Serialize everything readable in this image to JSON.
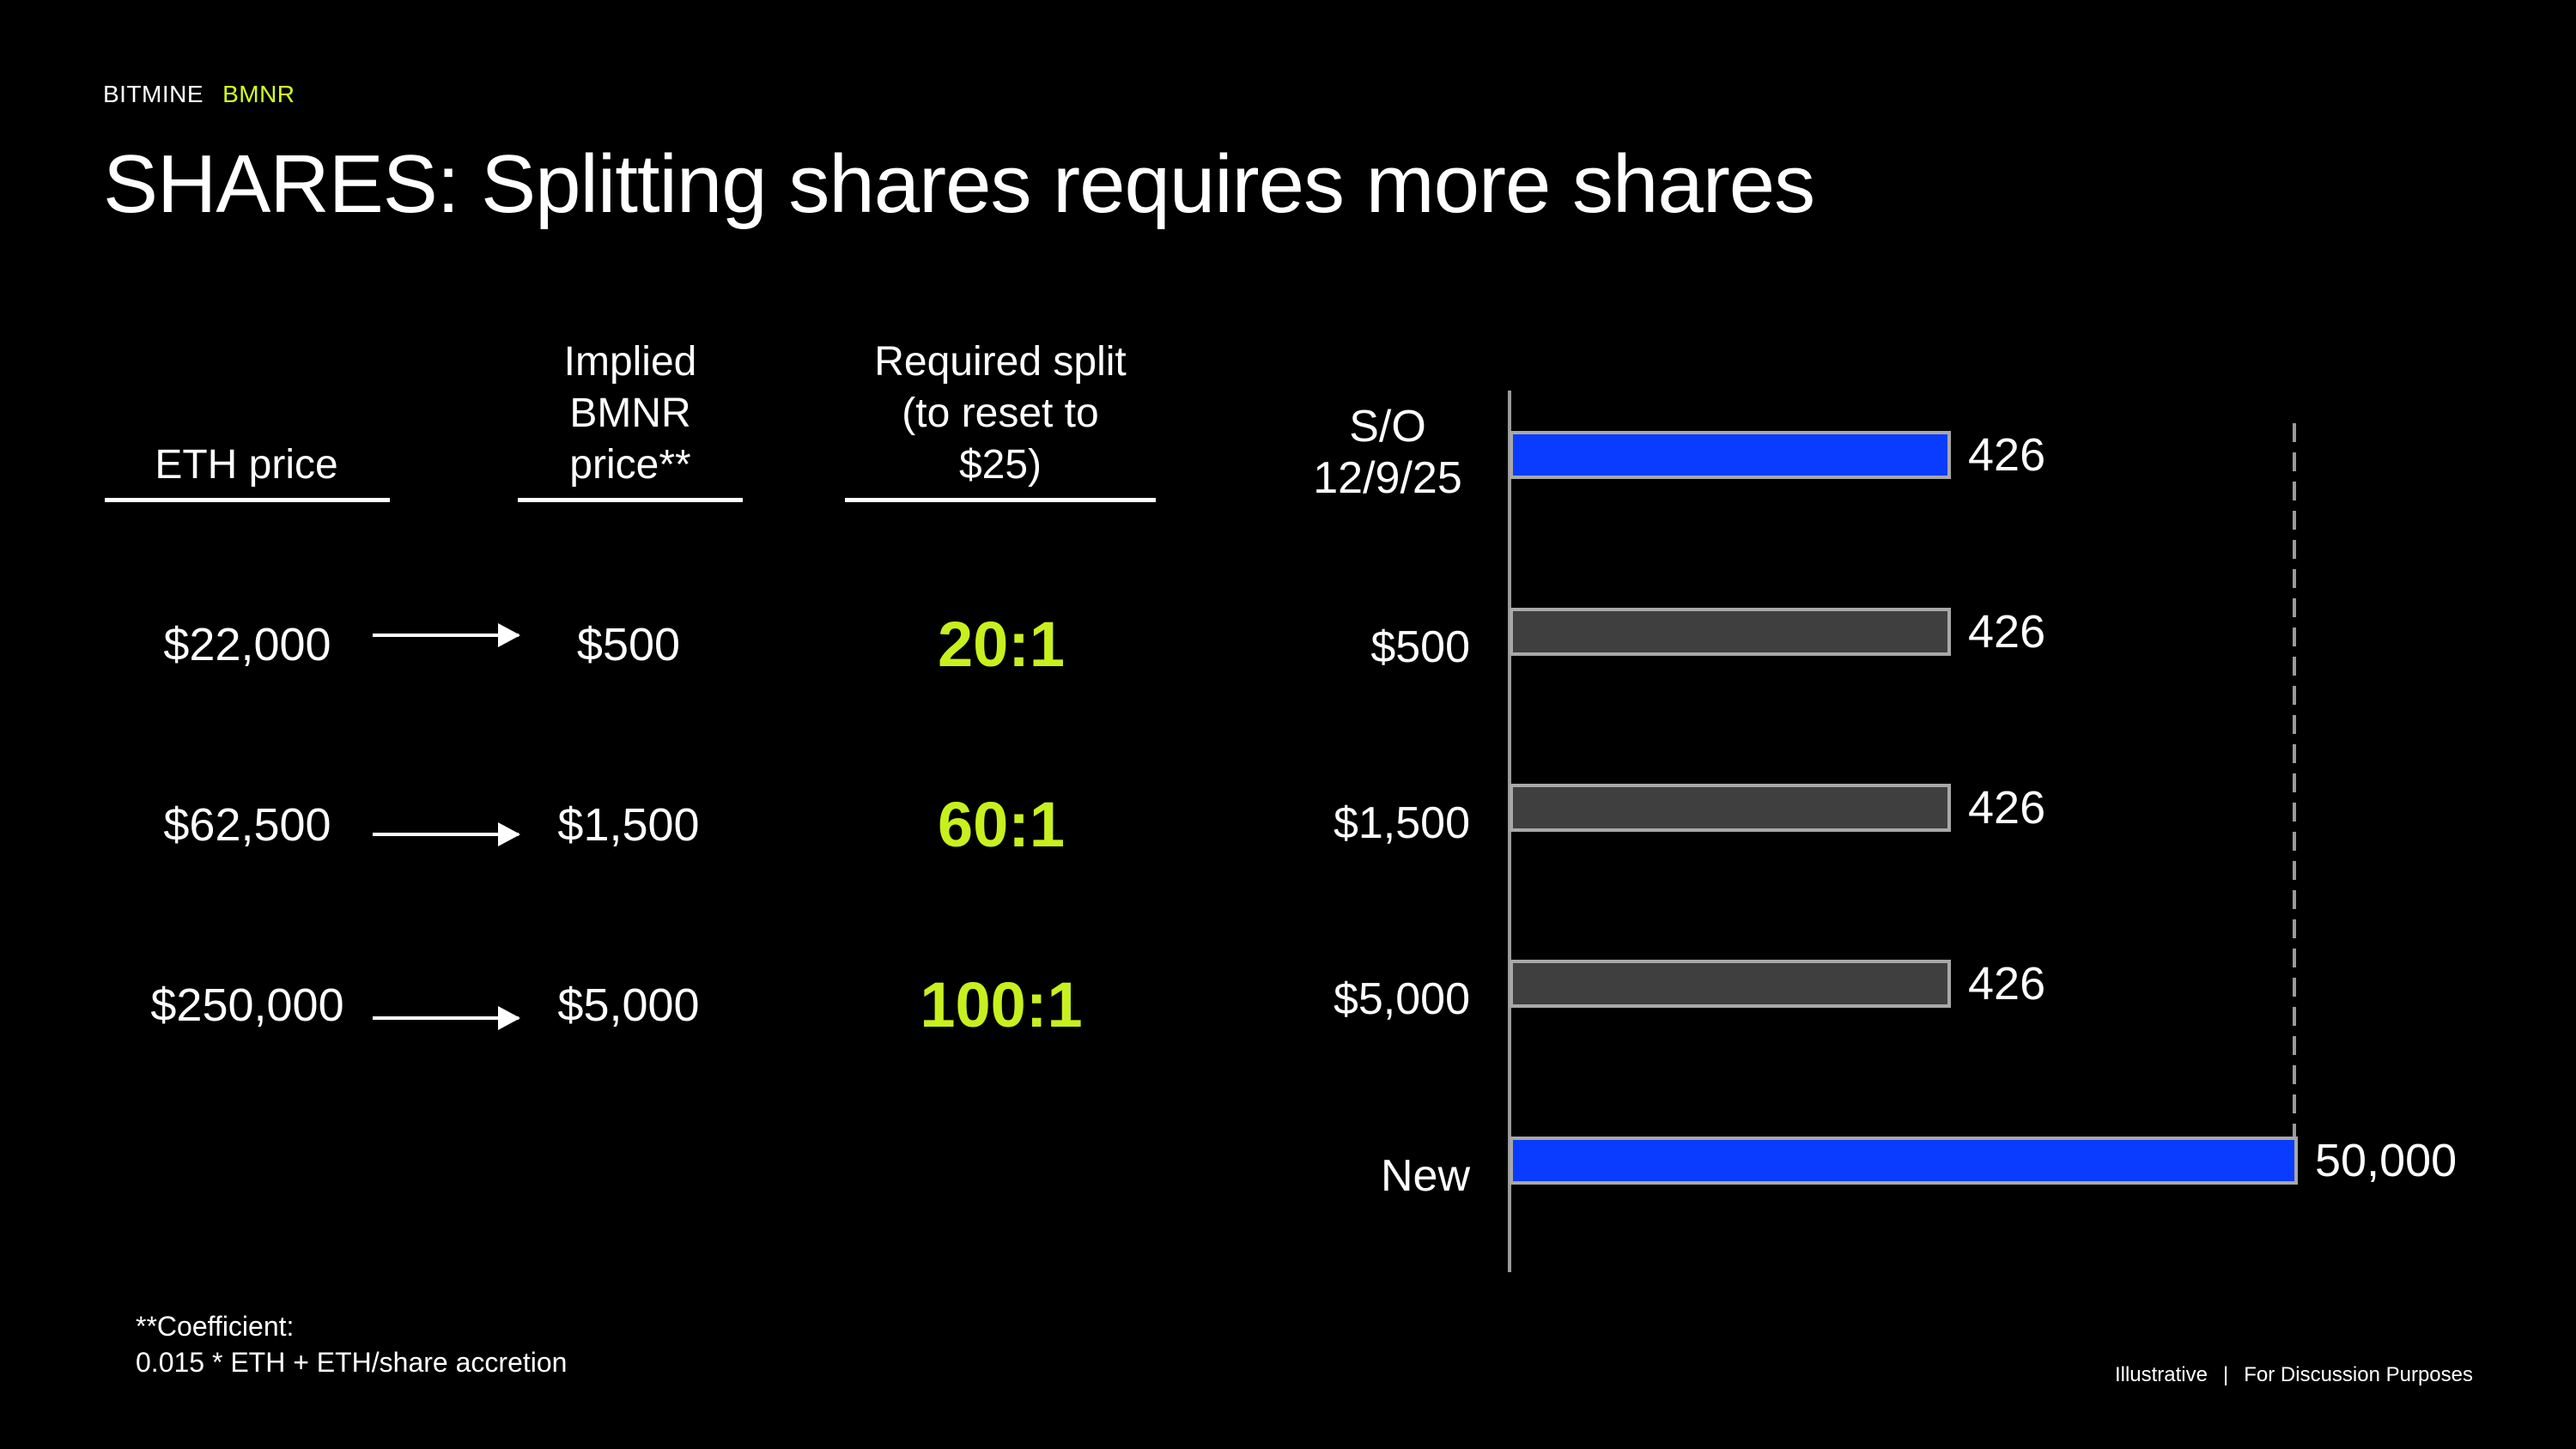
{
  "header": {
    "brand": "BITMINE",
    "ticker": "BMNR"
  },
  "title": "SHARES: Splitting shares requires more shares",
  "table": {
    "headers": {
      "eth_price": "ETH price",
      "implied_bmnr_price": "Implied\nBMNR\nprice**",
      "required_split": "Required split\n(to reset to\n$25)"
    },
    "rows": [
      {
        "eth_price": "$22,000",
        "implied_price": "$500",
        "split": "20:1"
      },
      {
        "eth_price": "$62,500",
        "implied_price": "$1,500",
        "split": "60:1"
      },
      {
        "eth_price": "$250,000",
        "implied_price": "$5,000",
        "split": "100:1"
      }
    ]
  },
  "chart_data": {
    "type": "bar",
    "orientation": "horizontal",
    "categories": [
      "S/O\n12/9/25",
      "$500",
      "$1,500",
      "$5,000",
      "New"
    ],
    "values": [
      426,
      426,
      426,
      426,
      50000
    ],
    "data_labels": [
      "426",
      "426",
      "426",
      "426",
      "50,000"
    ],
    "value_max": 50000,
    "series_colors": [
      "#0a3cff",
      "#3f3f3f",
      "#3f3f3f",
      "#3f3f3f",
      "#0a3cff"
    ],
    "dashed_reference_value": 50000
  },
  "footnote": {
    "line1": "**Coefficient:",
    "line2": "0.015 * ETH + ETH/share accretion"
  },
  "disclaimer": {
    "left": "Illustrative",
    "separator": "|",
    "right": "For Discussion Purposes"
  },
  "colors": {
    "accent_green": "#c8f01e",
    "brand_yellow": "#d4ff1e",
    "bar_blue": "#0a3cff",
    "bar_gray": "#3f3f3f"
  }
}
